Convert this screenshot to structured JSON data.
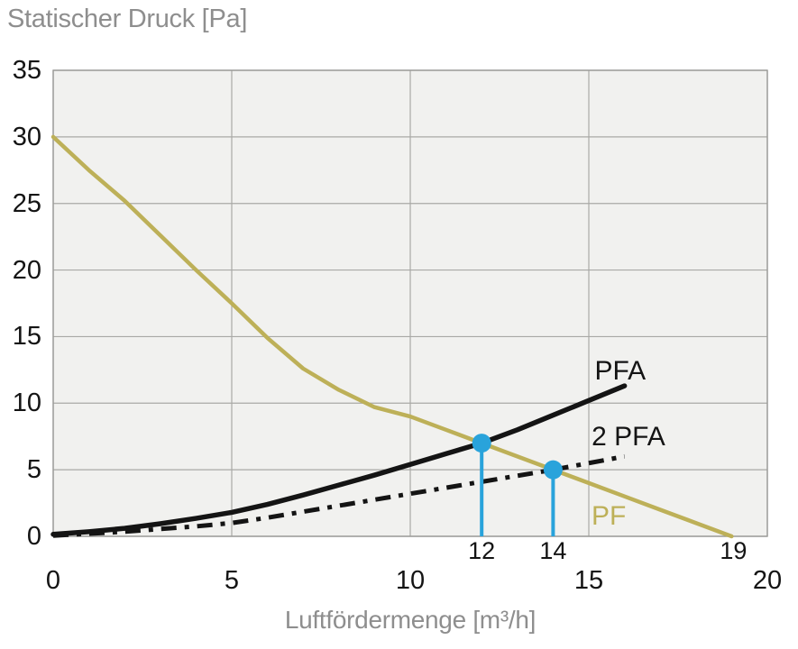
{
  "page": {
    "title": "Statischer Druck [Pa]",
    "x_axis_label": "Luftfördermenge [m³/h]"
  },
  "chart_data": {
    "type": "line",
    "title": "Statischer Druck [Pa]",
    "xlabel": "Luftfördermenge [m³/h]",
    "ylabel": "Statischer Druck [Pa]",
    "xlim": [
      0,
      20
    ],
    "ylim": [
      0,
      35
    ],
    "xticks": [
      0,
      5,
      10,
      15,
      20
    ],
    "yticks": [
      0,
      5,
      10,
      15,
      20,
      25,
      30,
      35
    ],
    "grid": true,
    "legend_position": "inline-labels",
    "colors": {
      "pf": "#bdb058",
      "black": "#141414",
      "marker_blue": "#29a3db",
      "grid": "#a9a9a6",
      "panel": "#f1f1ef",
      "muted_text": "#8e8e8e"
    },
    "series": [
      {
        "id": "pf",
        "name": "PF",
        "style": "solid",
        "color_key": "pf",
        "width": 4.5,
        "label_pos": [
          15.56,
          1.49
        ],
        "points": [
          [
            0,
            30
          ],
          [
            1,
            27.5
          ],
          [
            2,
            25.2
          ],
          [
            3,
            22.6
          ],
          [
            4,
            20
          ],
          [
            5,
            17.5
          ],
          [
            6,
            14.9
          ],
          [
            7,
            12.6
          ],
          [
            8,
            11
          ],
          [
            9,
            9.7
          ],
          [
            10,
            9
          ],
          [
            11,
            8
          ],
          [
            12,
            7
          ],
          [
            13,
            6
          ],
          [
            14,
            5
          ],
          [
            15,
            4
          ],
          [
            16,
            3
          ],
          [
            17,
            2
          ],
          [
            18,
            1
          ],
          [
            19,
            0
          ]
        ]
      },
      {
        "id": "2pfa",
        "name": "2 PFA",
        "style": "dashdot",
        "color_key": "black",
        "width": 5,
        "label_pos": [
          16.11,
          7.45
        ],
        "points": [
          [
            0,
            0.05
          ],
          [
            1,
            0.2
          ],
          [
            2,
            0.35
          ],
          [
            3,
            0.55
          ],
          [
            4,
            0.75
          ],
          [
            5,
            1.0
          ],
          [
            6,
            1.4
          ],
          [
            7,
            1.85
          ],
          [
            8,
            2.3
          ],
          [
            9,
            2.75
          ],
          [
            10,
            3.2
          ],
          [
            11,
            3.65
          ],
          [
            12,
            4.1
          ],
          [
            13,
            4.55
          ],
          [
            14,
            5
          ],
          [
            15,
            5.5
          ],
          [
            16,
            6
          ]
        ]
      },
      {
        "id": "pfa",
        "name": "PFA",
        "style": "solid",
        "color_key": "black",
        "width": 5.5,
        "label_pos": [
          15.88,
          12.39
        ],
        "points": [
          [
            0,
            0.15
          ],
          [
            1,
            0.35
          ],
          [
            2,
            0.6
          ],
          [
            3,
            0.95
          ],
          [
            4,
            1.35
          ],
          [
            5,
            1.8
          ],
          [
            6,
            2.4
          ],
          [
            7,
            3.1
          ],
          [
            8,
            3.85
          ],
          [
            9,
            4.6
          ],
          [
            10,
            5.4
          ],
          [
            11,
            6.2
          ],
          [
            12,
            7
          ],
          [
            13,
            8
          ],
          [
            14,
            9.1
          ],
          [
            15,
            10.2
          ],
          [
            16,
            11.3
          ]
        ]
      }
    ],
    "annotations": {
      "operating_points": [
        {
          "x": 12,
          "y": 7,
          "label": "12"
        },
        {
          "x": 14,
          "y": 5,
          "label": "14"
        }
      ],
      "x_intercept": {
        "x": 19,
        "label": "19"
      },
      "marker_radius": 10.5,
      "dropline_width": 4
    }
  }
}
